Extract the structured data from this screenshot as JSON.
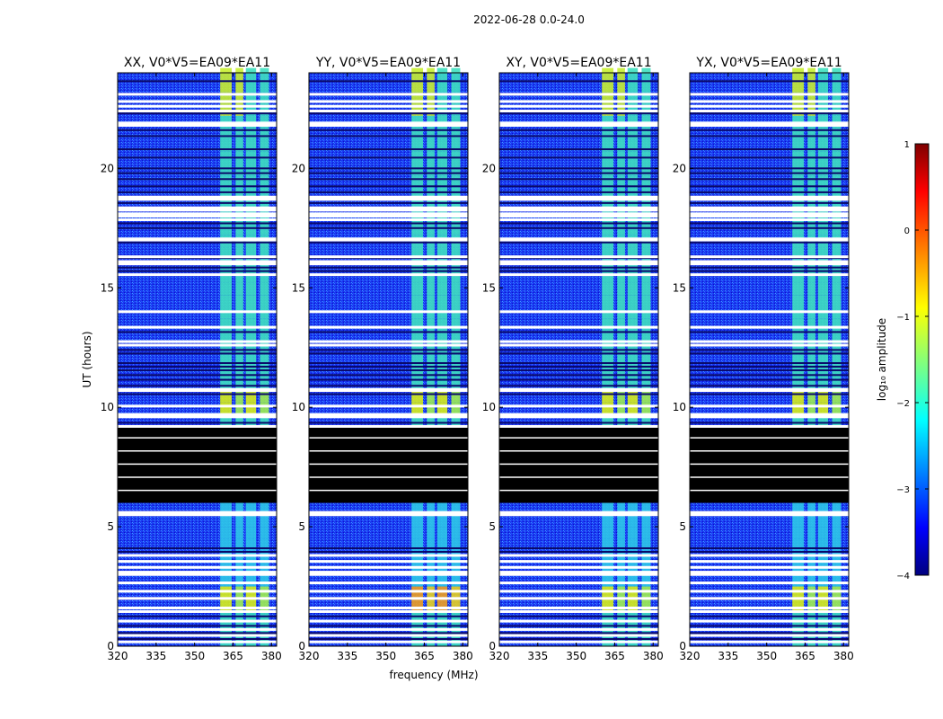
{
  "chart_data": {
    "type": "heatmap",
    "suptitle": "2022-06-28 0.0-24.0",
    "xlabel": "frequency (MHz)",
    "ylabel": "UT (hours)",
    "xlim": [
      320,
      382
    ],
    "ylim": [
      0,
      24
    ],
    "xticks": [
      320,
      335,
      350,
      365,
      380
    ],
    "yticks": [
      0,
      5,
      10,
      15,
      20
    ],
    "panels": [
      {
        "title": "XX, V0*V5=EA09*EA11"
      },
      {
        "title": "YY, V0*V5=EA09*EA11"
      },
      {
        "title": "XY, V0*V5=EA09*EA11"
      },
      {
        "title": "YX, V0*V5=EA09*EA11"
      }
    ],
    "colorbar": {
      "label": "log₁₀ amplitude",
      "ticks": [
        "1",
        "0",
        "−1",
        "−2",
        "−3",
        "−4"
      ],
      "range": [
        -4,
        1
      ],
      "colormap": "jet"
    },
    "active_band_mhz": [
      360,
      380
    ],
    "band_channels_mhz": [
      [
        360,
        364.5
      ],
      [
        366,
        369
      ],
      [
        370,
        374
      ],
      [
        375.5,
        379
      ]
    ],
    "no_data_hours": [
      [
        6.0,
        9.2
      ]
    ],
    "flagged_hours": [
      0.18,
      0.45,
      0.7,
      1.05,
      1.45,
      1.6,
      2.0,
      2.3,
      2.65,
      3.0,
      3.1,
      3.3,
      3.55,
      3.8,
      5.5,
      5.6,
      9.2,
      9.6,
      9.7,
      10.05,
      10.7,
      10.75,
      12.6,
      12.75,
      13.35,
      14.0,
      15.55,
      16.0,
      16.1,
      16.3,
      17.0,
      17.05,
      17.85,
      18.0,
      18.1,
      18.25,
      18.35,
      18.7,
      18.8,
      21.8,
      21.9,
      22.4,
      22.6,
      22.8,
      23.1
    ],
    "stripe_hours": [
      0.3,
      0.55,
      0.85,
      1.25,
      3.95,
      4.1,
      9.35,
      10.55,
      10.9,
      11.15,
      11.35,
      11.55,
      11.7,
      11.85,
      12.25,
      12.4,
      13.15,
      15.7,
      15.85,
      16.25,
      16.9,
      17.5,
      17.7,
      18.55,
      19.0,
      19.25,
      19.55,
      19.8,
      20.0,
      20.45,
      20.8,
      21.35,
      21.6,
      22.3,
      23.65
    ],
    "colors": {
      "background": "#ffffff",
      "no_data": "#000000",
      "flagged": "#ffffff"
    }
  }
}
